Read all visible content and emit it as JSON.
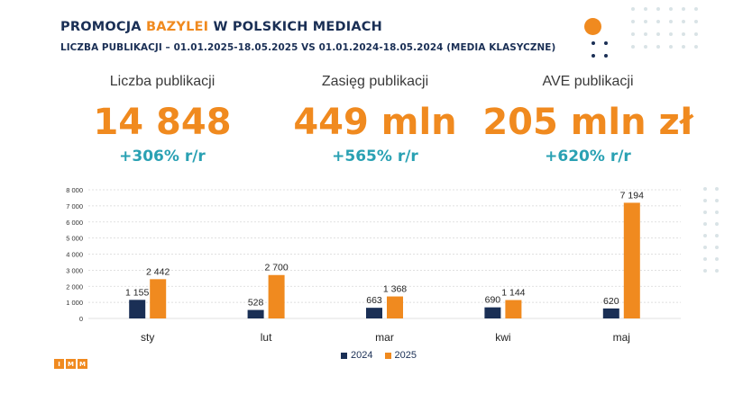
{
  "header": {
    "title_part1": "PROMOCJA",
    "title_accent": "BAZYLEI",
    "title_part2": "W POLSKICH MEDIACH",
    "subtitle": "LICZBA PUBLIKACJI – 01.01.2025-18.05.2025  VS 01.01.2024-18.05.2024  (MEDIA KLASYCZNE)"
  },
  "kpis": [
    {
      "label": "Liczba publikacji",
      "value": "14 848",
      "change": "+306% r/r"
    },
    {
      "label": "Zasięg publikacji",
      "value": "449 mln",
      "change": "+565% r/r"
    },
    {
      "label": "AVE publikacji",
      "value": "205 mln zł",
      "change": "+620% r/r"
    }
  ],
  "colors": {
    "series_2024": "#1a2f55",
    "series_2025": "#f08a1f",
    "accent_change": "#2aa1b3",
    "deco_dots": "#d9e3e6"
  },
  "chart_data": {
    "type": "bar",
    "categories": [
      "sty",
      "lut",
      "mar",
      "kwi",
      "maj"
    ],
    "series": [
      {
        "name": "2024",
        "values": [
          1155,
          528,
          663,
          690,
          620
        ],
        "labels": [
          "1 155",
          "528",
          "663",
          "690",
          "620"
        ]
      },
      {
        "name": "2025",
        "values": [
          2442,
          2700,
          1368,
          1144,
          7194
        ],
        "labels": [
          "2 442",
          "2 700",
          "1 368",
          "1 144",
          "7 194"
        ]
      }
    ],
    "yticks": [
      0,
      1000,
      2000,
      3000,
      4000,
      5000,
      6000,
      7000,
      8000
    ],
    "ytick_labels": [
      "0",
      "1 000",
      "2 000",
      "3 000",
      "4 000",
      "5 000",
      "6 000",
      "7 000",
      "8 000"
    ],
    "ylim": [
      0,
      8000
    ],
    "grid": true,
    "legend_position": "bottom"
  },
  "logo": {
    "letters": [
      "I",
      "M",
      "M"
    ]
  }
}
